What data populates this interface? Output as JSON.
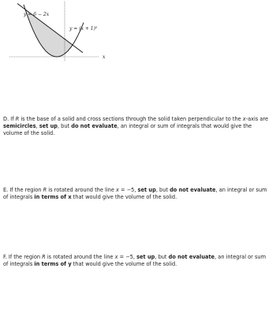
{
  "figure": {
    "line_label": "y = 6 − 2x",
    "curve_label": "y = (x + 1)²",
    "axis_label": "x"
  },
  "questions": [
    {
      "segments": [
        {
          "text": "D. If ",
          "style": "normal"
        },
        {
          "text": "R",
          "style": "italic"
        },
        {
          "text": " is the base of a solid and cross sections through the solid taken perpendicular to the ",
          "style": "normal"
        },
        {
          "text": "x",
          "style": "italic"
        },
        {
          "text": "-axis are ",
          "style": "normal"
        },
        {
          "text": "semicircles",
          "style": "bold"
        },
        {
          "text": ", ",
          "style": "normal"
        },
        {
          "text": "set up",
          "style": "bold"
        },
        {
          "text": ", but ",
          "style": "normal"
        },
        {
          "text": "do not evaluate",
          "style": "bold"
        },
        {
          "text": ", an integral or sum of integrals that would give the volume of the solid.",
          "style": "normal"
        }
      ]
    },
    {
      "segments": [
        {
          "text": "E. If the region ",
          "style": "normal"
        },
        {
          "text": "R",
          "style": "italic"
        },
        {
          "text": " is rotated around the line ",
          "style": "normal"
        },
        {
          "text": "x",
          "style": "italic"
        },
        {
          "text": " = −5, ",
          "style": "normal"
        },
        {
          "text": "set up",
          "style": "bold"
        },
        {
          "text": ", but ",
          "style": "normal"
        },
        {
          "text": "do not evaluate",
          "style": "bold"
        },
        {
          "text": ", an integral or sum of integrals ",
          "style": "normal"
        },
        {
          "text": "in terms of x",
          "style": "bold"
        },
        {
          "text": " that would give the volume of the solid.",
          "style": "normal"
        }
      ]
    },
    {
      "segments": [
        {
          "text": "F. If the region ",
          "style": "normal"
        },
        {
          "text": "R",
          "style": "italic"
        },
        {
          "text": " is rotated around the line ",
          "style": "normal"
        },
        {
          "text": "x",
          "style": "italic"
        },
        {
          "text": " = −5, ",
          "style": "normal"
        },
        {
          "text": "set up",
          "style": "bold"
        },
        {
          "text": ", but ",
          "style": "normal"
        },
        {
          "text": "do not evaluate",
          "style": "bold"
        },
        {
          "text": ", an integral or sum of integrals ",
          "style": "normal"
        },
        {
          "text": "in terms of y",
          "style": "bold"
        },
        {
          "text": " that would give the volume of the solid.",
          "style": "normal"
        }
      ]
    }
  ]
}
